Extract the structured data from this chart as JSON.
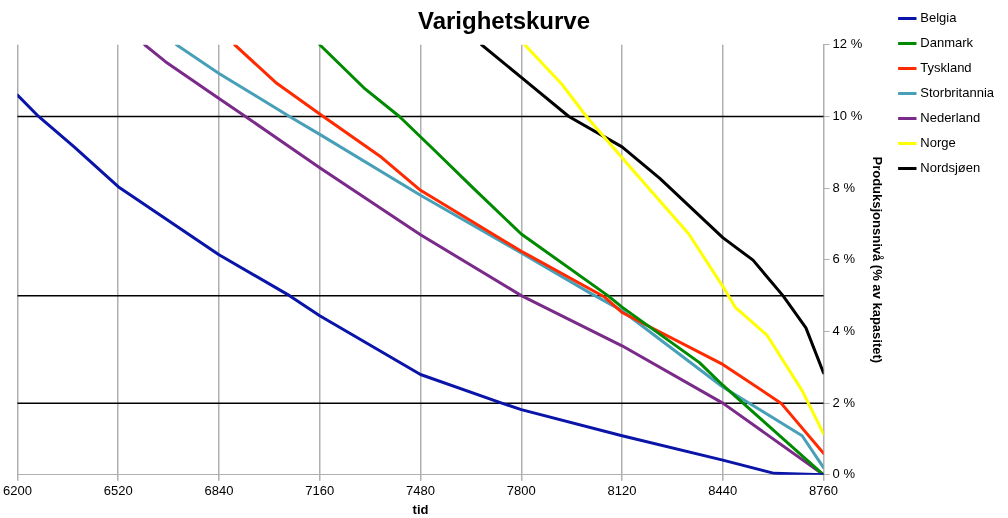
{
  "chart_data": {
    "type": "line",
    "title": "Varighetskurve",
    "xlabel": "tid",
    "ylabel": "Produksjonsnivå (% av kapasitet)",
    "xlim": [
      6200,
      8760
    ],
    "xticks": [
      6200,
      6520,
      6840,
      7160,
      7480,
      7800,
      8120,
      8440,
      8760
    ],
    "ylim": [
      0,
      12
    ],
    "yticks": [
      {
        "value": 0,
        "label": "0 %"
      },
      {
        "value": 2,
        "label": "2 %"
      },
      {
        "value": 4,
        "label": "4 %"
      },
      {
        "value": 6,
        "label": "6 %"
      },
      {
        "value": 8,
        "label": "8 %"
      },
      {
        "value": 10,
        "label": "10 %"
      },
      {
        "value": 12,
        "label": "12 %"
      }
    ],
    "grid": "x",
    "legend": "right",
    "marker": "none",
    "line_style": "solid",
    "ref_lines": [
      {
        "axis": "y",
        "value": 10,
        "color": "#000000"
      },
      {
        "axis": "y",
        "value": 5,
        "color": "#000000"
      },
      {
        "axis": "y",
        "value": 2,
        "color": "#000000"
      }
    ],
    "series": [
      {
        "name": "Belgia",
        "color": "#0a14a8",
        "x": [
          6200,
          6267,
          6380,
          6520,
          6840,
          7064,
          7160,
          7480,
          7738,
          7800,
          8120,
          8440,
          8603,
          8760
        ],
        "values": [
          10.6,
          10,
          9.15,
          8.04,
          6.14,
          5,
          4.44,
          2.8,
          2,
          1.82,
          1.09,
          0.41,
          0.04,
          0
        ]
      },
      {
        "name": "Danmark",
        "color": "#008a00",
        "x": [
          7160,
          7300,
          7413,
          7525,
          7650,
          7800,
          8075,
          8120,
          8366,
          8440,
          8760
        ],
        "values": [
          12,
          10.8,
          10,
          9.05,
          7.98,
          6.72,
          5,
          4.68,
          3.13,
          2.5,
          0
        ]
      },
      {
        "name": "Tyskland",
        "color": "#ff2a00",
        "x": [
          6890,
          7020,
          7160,
          7356,
          7480,
          7800,
          8063,
          8120,
          8440,
          8625,
          8760
        ],
        "values": [
          12,
          10.95,
          10.07,
          8.86,
          7.94,
          6.24,
          4.97,
          4.53,
          3.08,
          2,
          0.6
        ]
      },
      {
        "name": "Storbritannia",
        "color": "#48a0b8",
        "x": [
          6705,
          6840,
          7064,
          7160,
          7480,
          7800,
          8019,
          8120,
          8440,
          8692,
          8760
        ],
        "values": [
          12,
          11.2,
          10,
          9.5,
          7.8,
          6.19,
          5.07,
          4.58,
          2.45,
          1.09,
          0.2
        ]
      },
      {
        "name": "Nederland",
        "color": "#7a2a88",
        "x": [
          6604,
          6670,
          6840,
          6924,
          7160,
          7480,
          7800,
          8120,
          8440,
          8760
        ],
        "values": [
          12,
          11.53,
          10.5,
          10,
          8.57,
          6.7,
          5,
          3.6,
          2,
          0
        ]
      },
      {
        "name": "Norge",
        "color": "#ffff00",
        "x": [
          7811,
          7929,
          8007,
          8120,
          8332,
          8440,
          8479,
          8580,
          8692,
          8760
        ],
        "values": [
          12,
          10.9,
          10,
          8.85,
          6.72,
          5.26,
          4.68,
          3.9,
          2.35,
          1.14
        ]
      },
      {
        "name": "Nordsjøen",
        "color": "#000000",
        "x": [
          7674,
          7800,
          7951,
          8120,
          8240,
          8440,
          8536,
          8631,
          8704,
          8760
        ],
        "values": [
          12,
          11.09,
          10,
          9.15,
          8.27,
          6.62,
          5.99,
          5,
          4.1,
          2.84
        ]
      }
    ]
  }
}
